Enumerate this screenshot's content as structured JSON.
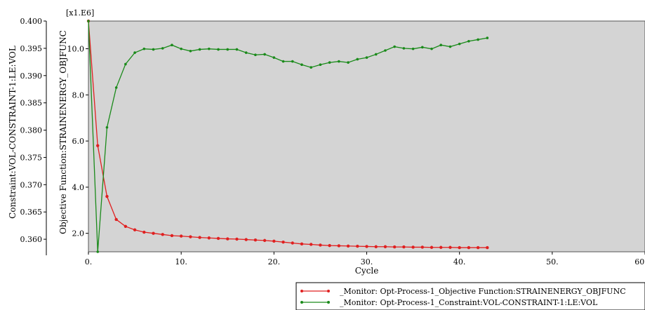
{
  "chart_data": {
    "type": "line",
    "xlabel": "Cycle",
    "ylabel_left": "Constraint:VOL-CONSTRAINT-1:LE:VOL",
    "ylabel_right": "Objective Function:STRAINENERGY_OBJFUNC",
    "multiplier": "[x1.E6]",
    "xlim": [
      0,
      60
    ],
    "ylim_left": [
      0.3577,
      0.4
    ],
    "ylim_right": [
      1.2,
      11.2
    ],
    "x_ticks": [
      "0.",
      "10.",
      "20.",
      "30.",
      "40.",
      "50.",
      "60."
    ],
    "y_left_ticks": [
      "0.400",
      "0.395",
      "0.390",
      "0.385",
      "0.380",
      "0.375",
      "0.370",
      "0.365",
      "0.360"
    ],
    "y_right_ticks": [
      "10.0",
      "8.0",
      "6.0",
      "4.0",
      "2.0"
    ],
    "grid": false,
    "legend_position": "bottom-right",
    "series": [
      {
        "name": "_Monitor: Opt-Process-1_Objective Function:STRAINENERGY_OBJFUNC",
        "axis": "right",
        "color": "#e02020",
        "x": [
          0,
          1,
          2,
          3,
          4,
          5,
          6,
          7,
          8,
          9,
          10,
          11,
          12,
          13,
          14,
          15,
          16,
          17,
          18,
          19,
          20,
          21,
          22,
          23,
          24,
          25,
          26,
          27,
          28,
          29,
          30,
          31,
          32,
          33,
          34,
          35,
          36,
          37,
          38,
          39,
          40,
          41,
          42,
          43
        ],
        "values": [
          11.2,
          5.8,
          3.6,
          2.6,
          2.3,
          2.15,
          2.05,
          2.0,
          1.95,
          1.9,
          1.88,
          1.85,
          1.82,
          1.8,
          1.78,
          1.76,
          1.75,
          1.73,
          1.71,
          1.69,
          1.66,
          1.62,
          1.58,
          1.54,
          1.52,
          1.49,
          1.47,
          1.46,
          1.45,
          1.44,
          1.43,
          1.42,
          1.42,
          1.41,
          1.41,
          1.4,
          1.4,
          1.39,
          1.39,
          1.39,
          1.38,
          1.38,
          1.38,
          1.38
        ]
      },
      {
        "name": "_Monitor: Opt-Process-1_Constraint:VOL-CONSTRAINT-1:LE:VOL",
        "axis": "left",
        "color": "#1a8a1a",
        "x": [
          0,
          1,
          2,
          3,
          4,
          5,
          6,
          7,
          8,
          9,
          10,
          11,
          12,
          13,
          14,
          15,
          16,
          17,
          18,
          19,
          20,
          21,
          22,
          23,
          24,
          25,
          26,
          27,
          28,
          29,
          30,
          31,
          32,
          33,
          34,
          35,
          36,
          37,
          38,
          39,
          40,
          41,
          42,
          43
        ],
        "values": [
          0.4,
          0.3577,
          0.3805,
          0.3878,
          0.3921,
          0.3942,
          0.3949,
          0.3948,
          0.395,
          0.3956,
          0.3949,
          0.3945,
          0.3948,
          0.3949,
          0.3948,
          0.3948,
          0.3948,
          0.3942,
          0.3938,
          0.3939,
          0.3933,
          0.3926,
          0.3926,
          0.392,
          0.3915,
          0.392,
          0.3924,
          0.3926,
          0.3924,
          0.393,
          0.3933,
          0.3939,
          0.3946,
          0.3953,
          0.395,
          0.3949,
          0.3952,
          0.3949,
          0.3956,
          0.3953,
          0.3958,
          0.3963,
          0.3966,
          0.3969
        ]
      }
    ]
  }
}
